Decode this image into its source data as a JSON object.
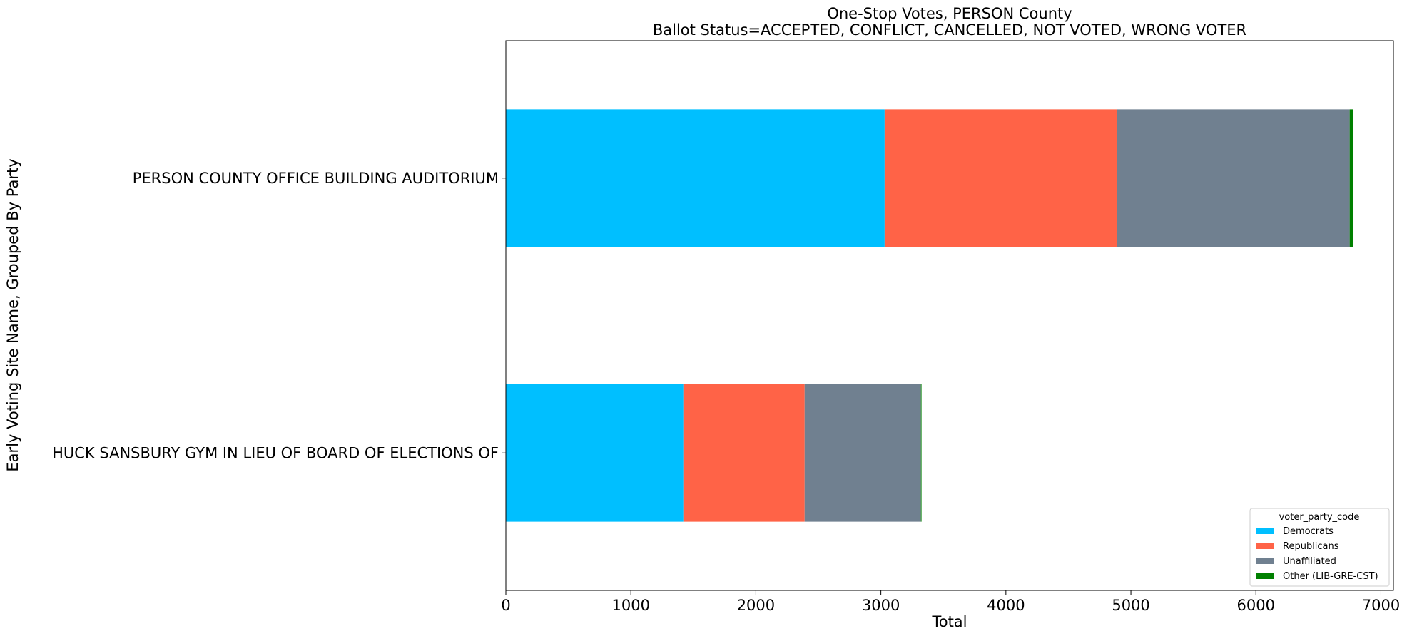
{
  "chart_data": {
    "type": "bar",
    "orientation": "horizontal",
    "stacked": true,
    "title": "One-Stop Votes, PERSON County",
    "subtitle": "Ballot Status=ACCEPTED, CONFLICT, CANCELLED, NOT VOTED, WRONG VOTER",
    "xlabel": "Total",
    "ylabel": "Early Voting Site Name, Grouped By Party",
    "xlim": [
      0,
      7100
    ],
    "xticks": [
      0,
      1000,
      2000,
      3000,
      4000,
      5000,
      6000,
      7000
    ],
    "grid": false,
    "legend_title": "voter_party_code",
    "legend_position": "lower-right",
    "categories": [
      "HUCK SANSBURY GYM IN LIEU OF BOARD OF ELECTIONS OF",
      "PERSON COUNTY OFFICE BUILDING AUDITORIUM"
    ],
    "series": [
      {
        "name": "Democrats",
        "color": "#00bfff",
        "values": [
          1420,
          3030
        ]
      },
      {
        "name": "Republicans",
        "color": "#ff6347",
        "values": [
          970,
          1860
        ]
      },
      {
        "name": "Unaffiliated",
        "color": "#708090",
        "values": [
          930,
          1860
        ]
      },
      {
        "name": "Other (LIB-GRE-CST)",
        "color": "#008000",
        "values": [
          5,
          30
        ]
      }
    ]
  }
}
